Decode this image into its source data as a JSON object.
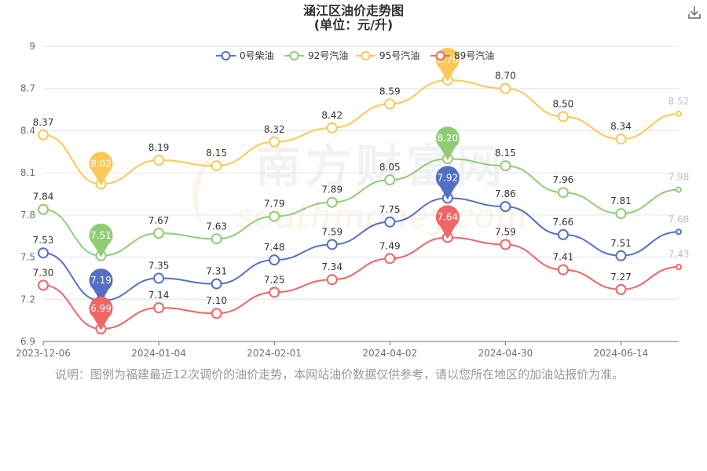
{
  "header": {
    "title": "涵江区油价走势图",
    "subtitle": "(单位：元/升)"
  },
  "toolbar": {
    "download_icon": "download-icon"
  },
  "watermark": {
    "brand": "南方财富网",
    "url": "southmoney.com"
  },
  "note": "说明：图例为福建最近12次调价的油价走势，本网站油价数据仅供参考，请以您所在地区的加油站报价为准。",
  "chart_data": {
    "type": "line",
    "title": "涵江区油价走势图",
    "subtitle": "(单位：元/升)",
    "xlabel": "",
    "ylabel": "",
    "x_tick_labels": [
      "2023-12-06",
      "2024-01-04",
      "2024-02-01",
      "2024-04-02",
      "2024-04-30",
      "2024-06-14"
    ],
    "x_tick_at_point": [
      0,
      2,
      4,
      6,
      8,
      10
    ],
    "point_count": 12,
    "y_ticks": [
      6.9,
      7.2,
      7.5,
      7.8,
      8.1,
      8.4,
      8.7,
      9
    ],
    "ylim": [
      6.9,
      9
    ],
    "grid": true,
    "smooth": true,
    "legend_position": "top",
    "series": [
      {
        "name": "0号柴油",
        "color": "#5470c6",
        "values": [
          7.53,
          7.19,
          7.35,
          7.31,
          7.48,
          7.59,
          7.75,
          7.92,
          7.86,
          7.66,
          7.51,
          7.68
        ],
        "min_index": 1,
        "max_index": 7
      },
      {
        "name": "92号汽油",
        "color": "#91cc75",
        "values": [
          7.84,
          7.51,
          7.67,
          7.63,
          7.79,
          7.89,
          8.05,
          8.2,
          8.15,
          7.96,
          7.81,
          7.98
        ],
        "min_index": 1,
        "max_index": 7
      },
      {
        "name": "95号汽油",
        "color": "#fac858",
        "values": [
          8.37,
          8.02,
          8.19,
          8.15,
          8.32,
          8.42,
          8.59,
          8.76,
          8.7,
          8.5,
          8.34,
          8.52
        ],
        "min_index": 1,
        "max_index": 7
      },
      {
        "name": "89号汽油",
        "color": "#ee6666",
        "values": [
          7.3,
          6.99,
          7.14,
          7.1,
          7.25,
          7.34,
          7.49,
          7.64,
          7.59,
          7.41,
          7.27,
          7.43
        ],
        "min_index": 1,
        "max_index": 7
      }
    ]
  }
}
